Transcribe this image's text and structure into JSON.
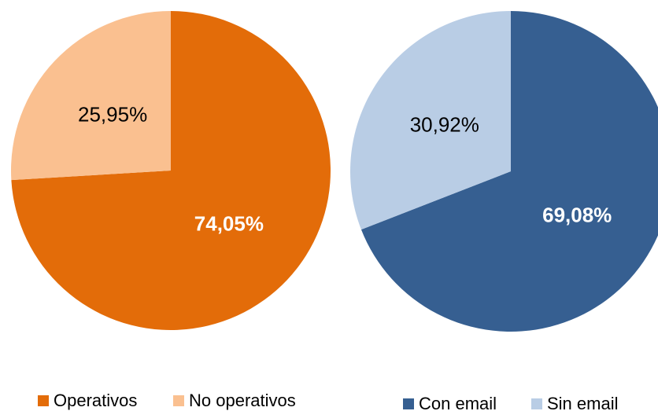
{
  "chart_data": [
    {
      "type": "pie",
      "categories": [
        "Operativos",
        "No operativos"
      ],
      "values": [
        74.05,
        25.95
      ],
      "value_labels": [
        "74,05%",
        "25,95%"
      ],
      "colors": [
        "#e36c09",
        "#fac090"
      ],
      "label_colors": [
        "#ffffff",
        "#000000"
      ]
    },
    {
      "type": "pie",
      "categories": [
        "Con email",
        "Sin email"
      ],
      "values": [
        69.08,
        30.92
      ],
      "value_labels": [
        "69,08%",
        "30,92%"
      ],
      "colors": [
        "#365f91",
        "#b9cde5"
      ],
      "label_colors": [
        "#ffffff",
        "#000000"
      ]
    }
  ]
}
